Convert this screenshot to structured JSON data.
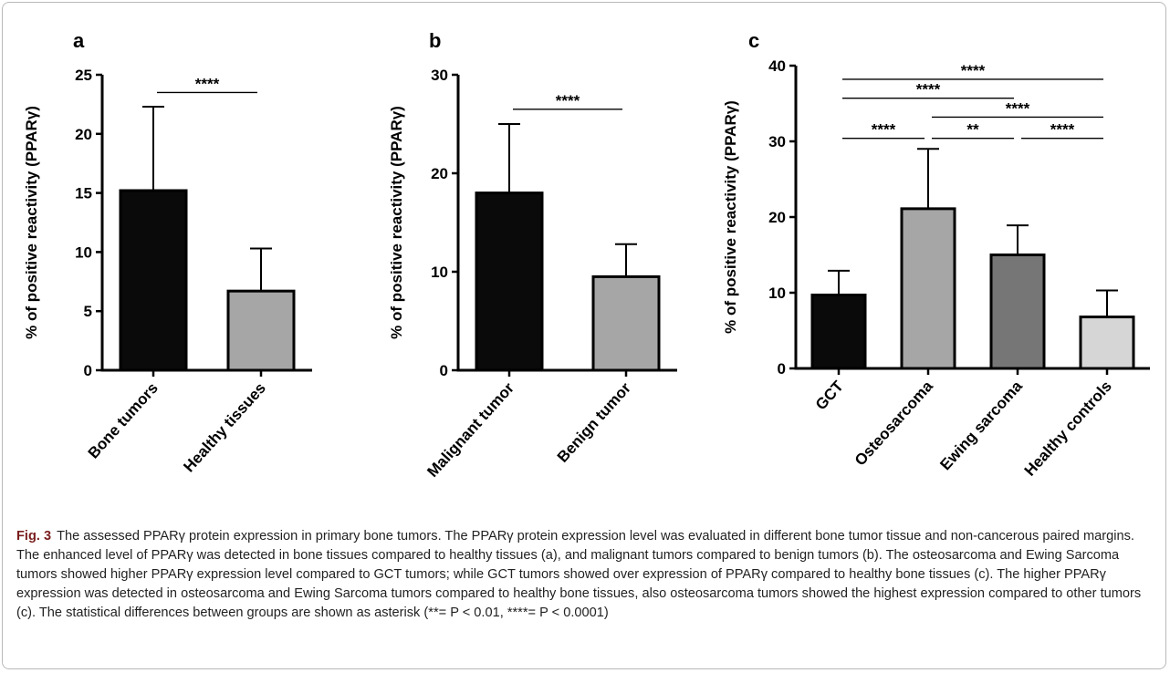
{
  "chart_data": [
    {
      "type": "bar",
      "panel": "a",
      "ylabel": "% of positive reactivity (PPARγ)",
      "ylim": [
        0,
        25
      ],
      "yticks": [
        0,
        5,
        10,
        15,
        20,
        25
      ],
      "categories": [
        "Bone tumors",
        "Healthy tissues"
      ],
      "values": [
        15.2,
        6.7
      ],
      "errors": [
        7.1,
        3.6
      ],
      "colors": [
        "#0a0a0a",
        "#a6a6a6"
      ],
      "significance": [
        {
          "from": 0,
          "to": 1,
          "label": "****",
          "y": 23.5
        }
      ]
    },
    {
      "type": "bar",
      "panel": "b",
      "ylabel": "% of positive reactivity (PPARγ)",
      "ylim": [
        0,
        30
      ],
      "yticks": [
        0,
        10,
        20,
        30
      ],
      "categories": [
        "Malignant tumor",
        "Benign tumor"
      ],
      "values": [
        18.0,
        9.5
      ],
      "errors": [
        7.0,
        3.3
      ],
      "colors": [
        "#0a0a0a",
        "#a6a6a6"
      ],
      "significance": [
        {
          "from": 0,
          "to": 1,
          "label": "****",
          "y": 26.5
        }
      ]
    },
    {
      "type": "bar",
      "panel": "c",
      "ylabel": "% of positive reactivity (PPARγ)",
      "ylim": [
        0,
        40
      ],
      "yticks": [
        0,
        10,
        20,
        30,
        40
      ],
      "categories": [
        "GCT",
        "Osteosarcoma",
        "Ewing sarcoma",
        "Healthy controls"
      ],
      "values": [
        9.7,
        21.1,
        15.0,
        6.8
      ],
      "errors": [
        3.2,
        7.9,
        3.9,
        3.5
      ],
      "colors": [
        "#0a0a0a",
        "#a6a6a6",
        "#767676",
        "#d6d6d6"
      ],
      "significance": [
        {
          "from": 0,
          "to": 3,
          "label": "****",
          "y": 38.2
        },
        {
          "from": 0,
          "to": 2,
          "label": "****",
          "y": 35.7
        },
        {
          "from": 1,
          "to": 3,
          "label": "****",
          "y": 33.2
        },
        {
          "from": 0,
          "to": 1,
          "label": "****",
          "y": 30.4
        },
        {
          "from": 1,
          "to": 2,
          "label": "**",
          "y": 30.4
        },
        {
          "from": 2,
          "to": 3,
          "label": "****",
          "y": 30.4
        }
      ]
    }
  ],
  "caption": {
    "figure_label": "Fig. 3",
    "text": "The assessed PPARγ protein expression in primary bone tumors. The PPARγ protein expression level was evaluated in different bone tumor tissue and non-cancerous paired margins. The enhanced level of PPARγ was detected in bone tissues compared to healthy tissues (a), and malignant tumors compared to benign tumors (b). The osteosarcoma and Ewing Sarcoma tumors showed higher PPARγ expression level compared to GCT tumors; while GCT tumors showed over expression of PPARγ compared to healthy bone tissues (c). The higher PPARγ expression was detected in osteosarcoma and Ewing Sarcoma tumors compared to healthy bone tissues, also osteosarcoma tumors showed the highest expression compared to other tumors (c). The statistical differences between groups are shown as asterisk (**= P < 0.01, ****= P < 0.0001)"
  }
}
